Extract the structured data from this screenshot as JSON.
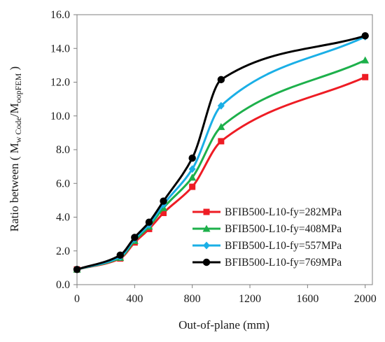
{
  "chart_data": {
    "type": "line",
    "xlabel": "Out-of-plane (mm)",
    "ylabel": {
      "prefix": "Ratio between ( M",
      "sub1": "w Code",
      "mid": "/M",
      "sub2": "oopFEM",
      "suffix": " )"
    },
    "xlim": [
      0,
      2050
    ],
    "ylim": [
      0,
      16
    ],
    "xticks": [
      0,
      400,
      800,
      1200,
      1600,
      2000
    ],
    "xtick_labels": [
      "0",
      "400",
      "800",
      "1200",
      "1600",
      "2000"
    ],
    "yticks": [
      0,
      2,
      4,
      6,
      8,
      10,
      12,
      14,
      16
    ],
    "ytick_labels": [
      "0.0",
      "2.0",
      "4.0",
      "6.0",
      "8.0",
      "10.0",
      "12.0",
      "14.0",
      "16.0"
    ],
    "grid": false,
    "legend_position": "lower-right",
    "series": [
      {
        "name": "BFIB500-L10-fy=282MPa",
        "color": "#ee1c24",
        "marker": "square",
        "x": [
          0,
          300,
          400,
          500,
          600,
          800,
          1000,
          2000
        ],
        "y": [
          0.9,
          1.55,
          2.5,
          3.3,
          4.25,
          5.8,
          8.5,
          12.3
        ]
      },
      {
        "name": "BFIB500-L10-fy=408MPa",
        "color": "#1db04b",
        "marker": "triangle",
        "x": [
          0,
          300,
          400,
          500,
          600,
          800,
          1000,
          2000
        ],
        "y": [
          0.9,
          1.6,
          2.6,
          3.45,
          4.55,
          6.35,
          9.35,
          13.3
        ]
      },
      {
        "name": "BFIB500-L10-fy=557MPa",
        "color": "#1aafe6",
        "marker": "diamond",
        "x": [
          0,
          300,
          400,
          500,
          600,
          800,
          1000,
          2000
        ],
        "y": [
          0.9,
          1.65,
          2.7,
          3.55,
          4.75,
          6.85,
          10.6,
          14.7
        ]
      },
      {
        "name": "BFIB500-L10-fy=769MPa",
        "color": "#000000",
        "marker": "circle",
        "x": [
          0,
          300,
          400,
          500,
          600,
          800,
          1000,
          2000
        ],
        "y": [
          0.9,
          1.75,
          2.8,
          3.7,
          4.95,
          7.5,
          12.15,
          14.75
        ]
      }
    ]
  }
}
